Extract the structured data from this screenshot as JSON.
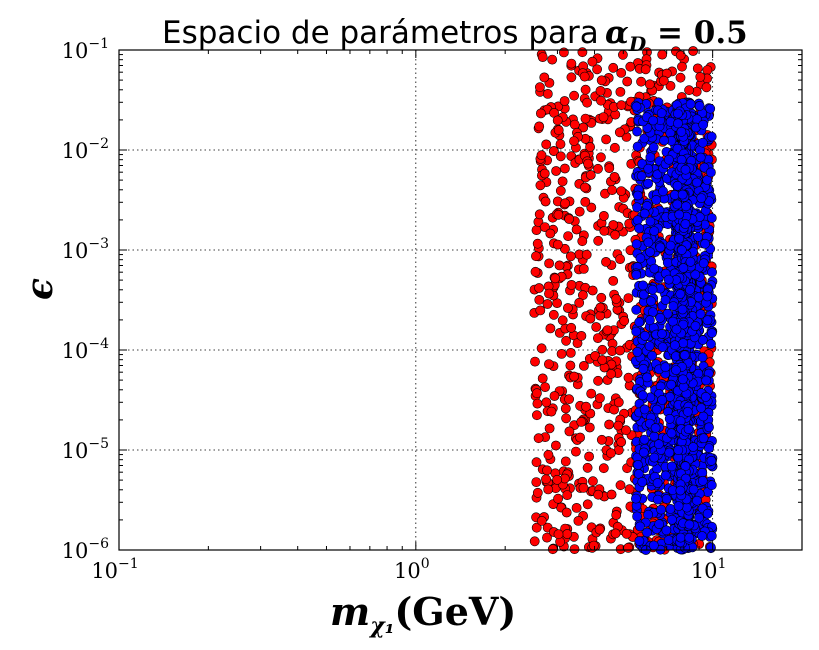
{
  "chart_data": {
    "type": "scatter",
    "title": "Espacio de parámetros para",
    "title_math": "α",
    "title_math_sub": "D",
    "title_math_rest": " = 0.5",
    "xlabel": "m",
    "xlabel_sub": "χ₁",
    "xlabel_rest": "(GeV)",
    "ylabel": "ϵ",
    "xscale": "log",
    "yscale": "log",
    "xlim": [
      0.1,
      20
    ],
    "ylim": [
      1e-06,
      0.1
    ],
    "grid": true,
    "x_ticks": [
      {
        "value": 0.1,
        "base": "10",
        "exp": "−1"
      },
      {
        "value": 1,
        "base": "10",
        "exp": "0"
      },
      {
        "value": 10,
        "base": "10",
        "exp": "1"
      }
    ],
    "y_ticks": [
      {
        "value": 1e-06,
        "base": "10",
        "exp": "−6"
      },
      {
        "value": 1e-05,
        "base": "10",
        "exp": "−5"
      },
      {
        "value": 0.0001,
        "base": "10",
        "exp": "−4"
      },
      {
        "value": 0.001,
        "base": "10",
        "exp": "−3"
      },
      {
        "value": 0.01,
        "base": "10",
        "exp": "−2"
      },
      {
        "value": 0.1,
        "base": "10",
        "exp": "−1"
      }
    ],
    "series": [
      {
        "color": "#ff0000",
        "x_range": [
          2.5,
          10
        ],
        "y_range": [
          1e-06,
          0.1
        ],
        "approx_count": 900,
        "description_of_density": "uniform in log-space"
      },
      {
        "color": "#0000ff",
        "x_range": [
          5.5,
          10
        ],
        "y_range": [
          1e-06,
          0.03
        ],
        "approx_count": 2200,
        "dense_core_x": 8.0
      }
    ]
  }
}
